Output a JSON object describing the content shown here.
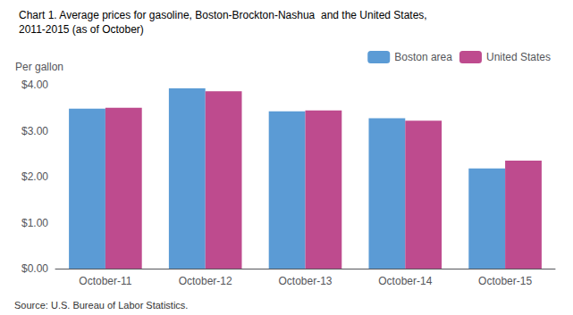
{
  "chart_data": {
    "type": "bar",
    "title": "Chart 1. Average prices for gasoline, Boston-Brockton-Nashua  and the United States,",
    "subtitle": "2011-2015 (as of October)",
    "ylabel": "Per gallon",
    "annotations": [
      "Source: U.S. Bureau of Labor Statistics."
    ],
    "categories": [
      "October-11",
      "October-12",
      "October-13",
      "October-14",
      "October-15"
    ],
    "series": [
      {
        "name": "Boston area",
        "color": "#5B9BD5",
        "values": [
          3.48,
          3.92,
          3.42,
          3.27,
          2.18
        ]
      },
      {
        "name": "United States",
        "color": "#BE4B8E",
        "values": [
          3.5,
          3.86,
          3.44,
          3.22,
          2.35
        ]
      }
    ],
    "ylim": [
      0.0,
      4.0
    ],
    "yticks": [
      {
        "value": 0,
        "label": "$0.00"
      },
      {
        "value": 1,
        "label": "$1.00"
      },
      {
        "value": 2,
        "label": "$2.00"
      },
      {
        "value": 3,
        "label": "$3.00"
      },
      {
        "value": 4,
        "label": "$4.00"
      }
    ],
    "grid": false,
    "legend": "upper right"
  }
}
